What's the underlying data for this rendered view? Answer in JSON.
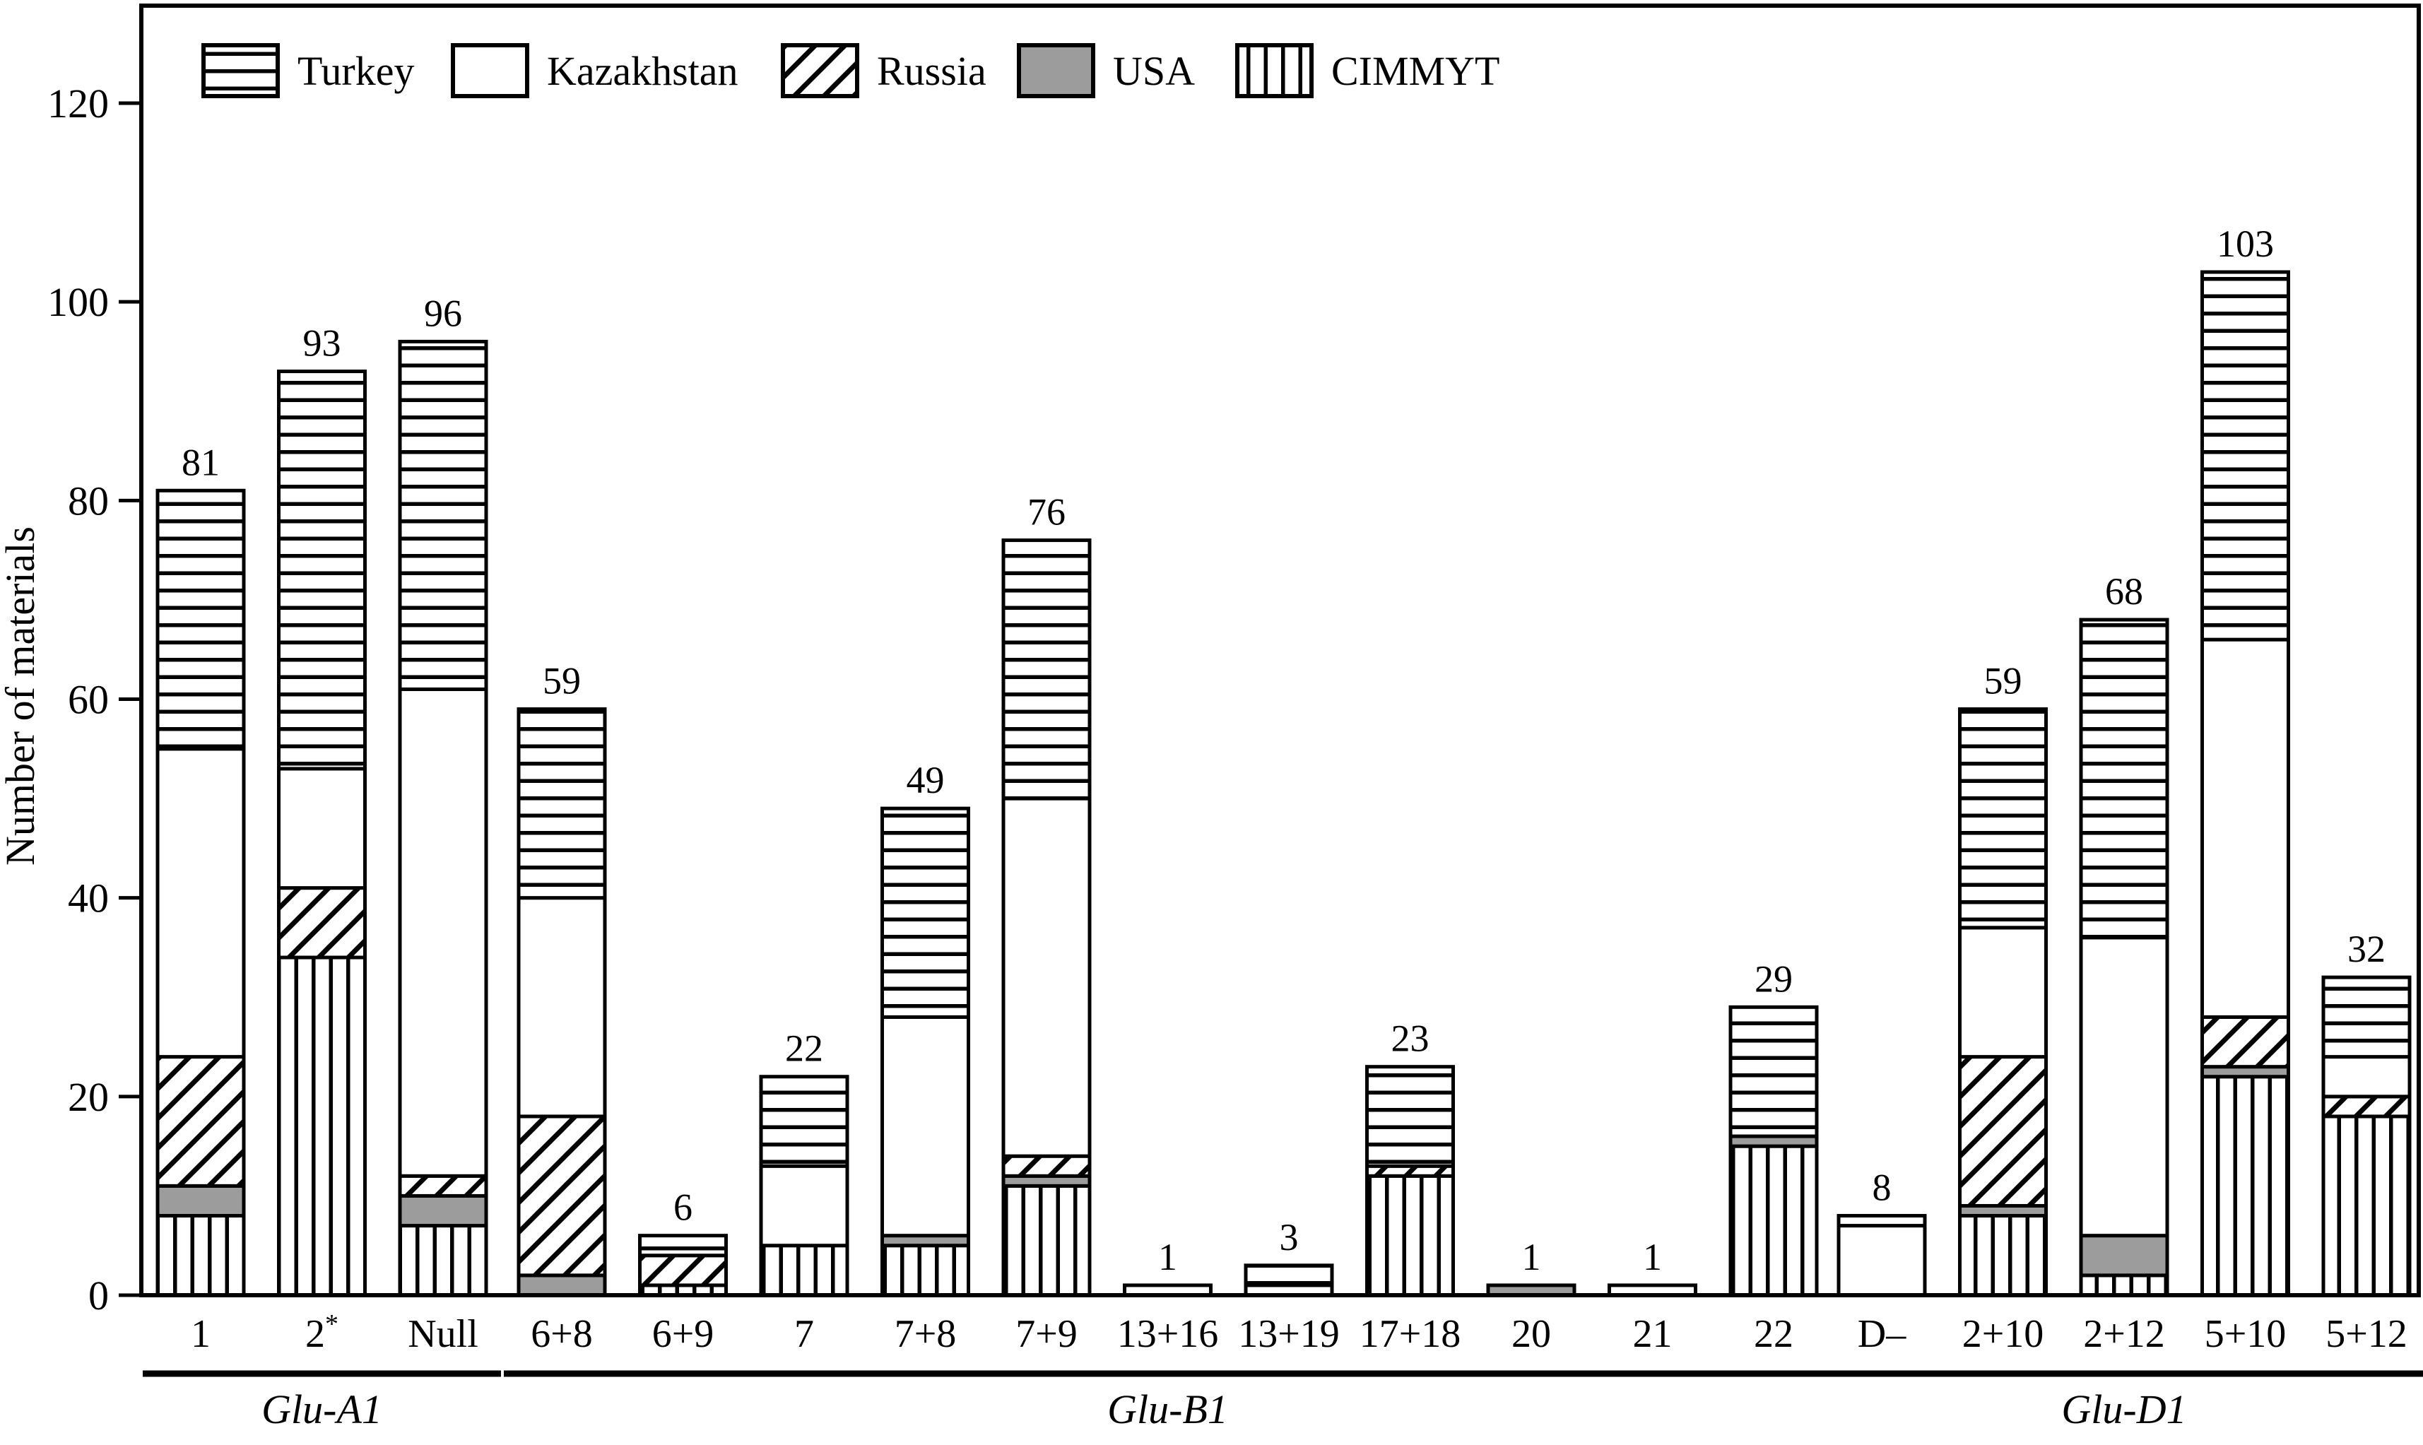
{
  "figure": {
    "ylabel": "Number of materials"
  },
  "chart_data": {
    "type": "bar",
    "stacked": true,
    "title": "",
    "xlabel": "",
    "ylabel": "Number of materials",
    "ylim": [
      0,
      130
    ],
    "yticks": [
      0,
      20,
      40,
      60,
      80,
      100,
      120
    ],
    "grid": false,
    "legend_position": "top-left-inside",
    "categories": [
      "1",
      "2*",
      "Null",
      "6+8",
      "6+9",
      "7",
      "7+8",
      "7+9",
      "13+16",
      "13+19",
      "17+18",
      "20",
      "21",
      "22",
      "D–",
      "2+10",
      "2+12",
      "5+10",
      "5+12"
    ],
    "totals": [
      81,
      93,
      96,
      59,
      6,
      22,
      49,
      76,
      1,
      3,
      23,
      1,
      1,
      29,
      8,
      59,
      68,
      103,
      32
    ],
    "groups": [
      {
        "label": "Glu-A1",
        "from": 0,
        "to": 2
      },
      {
        "label": "Glu-B1",
        "from": 3,
        "to": 13
      },
      {
        "label": "Glu-D1",
        "from": 14,
        "to": 18
      }
    ],
    "series": [
      {
        "name": "CIMMYT",
        "pattern": "vertical-lines",
        "values": [
          8,
          34,
          7,
          0,
          1,
          5,
          5,
          11,
          0,
          0,
          12,
          0,
          0,
          15,
          0,
          8,
          2,
          22,
          18
        ]
      },
      {
        "name": "USA",
        "pattern": "solid-gray",
        "values": [
          3,
          0,
          3,
          2,
          0,
          0,
          1,
          1,
          0,
          0,
          0,
          1,
          0,
          1,
          0,
          1,
          4,
          1,
          0
        ]
      },
      {
        "name": "Russia",
        "pattern": "diagonal-hatch",
        "values": [
          13,
          7,
          2,
          16,
          3,
          0,
          0,
          2,
          0,
          0,
          1,
          0,
          0,
          0,
          0,
          15,
          0,
          5,
          2
        ]
      },
      {
        "name": "Kazakhstan",
        "pattern": "white",
        "values": [
          31,
          12,
          49,
          22,
          0,
          8,
          22,
          36,
          1,
          1,
          0,
          0,
          1,
          0,
          7,
          13,
          30,
          38,
          4
        ]
      },
      {
        "name": "Turkey",
        "pattern": "horizontal-lines",
        "values": [
          26,
          40,
          35,
          19,
          2,
          9,
          21,
          26,
          0,
          2,
          10,
          0,
          0,
          13,
          1,
          22,
          32,
          37,
          8
        ]
      }
    ],
    "legend_order": [
      "Turkey",
      "Kazakhstan",
      "Russia",
      "USA",
      "CIMMYT"
    ],
    "colors": {
      "line": "#000000",
      "usa_gray": "#9c9c9c",
      "background": "#ffffff"
    }
  }
}
